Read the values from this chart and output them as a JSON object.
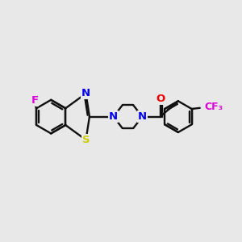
{
  "bg_color": "#e8e8e8",
  "bond_color": "#111111",
  "N_color": "#0000ee",
  "S_color": "#cccc00",
  "F_color": "#dd00dd",
  "O_color": "#ee0000",
  "line_width": 1.7,
  "figsize": [
    3.0,
    3.0
  ],
  "dpi": 100,
  "xlim": [
    0,
    10
  ],
  "ylim": [
    0,
    10
  ]
}
